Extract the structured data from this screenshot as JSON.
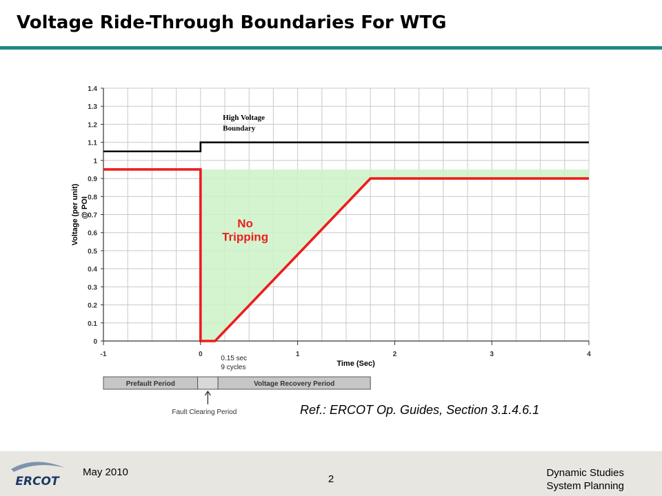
{
  "slide": {
    "title": "Voltage Ride-Through Boundaries For WTG",
    "reference": "Ref.: ERCOT Op. Guides, Section 3.1.4.6.1"
  },
  "footer": {
    "logo_text": "ERCOT",
    "date": "May 2010",
    "page_number": "2",
    "department_line1": "Dynamic Studies",
    "department_line2": "System Planning"
  },
  "colors": {
    "teal_rule": "#1f8a82",
    "red_boundary": "#ee1c1c",
    "black_boundary": "#000000",
    "no_trip_fill": "#ccf2c8",
    "period_bar": "#c6c6c6"
  },
  "chart_data": {
    "type": "line",
    "xlabel": "Time (Sec)",
    "ylabel_line1": "Voltage (per unit)",
    "ylabel_line2": "@ POI",
    "xlim": [
      -1,
      4
    ],
    "ylim": [
      0,
      1.4
    ],
    "x_ticks": [
      "-1",
      "0",
      "1",
      "2",
      "3",
      "4"
    ],
    "y_ticks": [
      "0",
      "0.1",
      "0.2",
      "0.3",
      "0.4",
      "0.5",
      "0.6",
      "0.7",
      "0.8",
      "0.9",
      "1",
      "1.1",
      "1.2",
      "1.3",
      "1.4"
    ],
    "grid": true,
    "series": [
      {
        "name": "High Voltage Boundary",
        "color": "#000000",
        "points": [
          [
            -1,
            1.05
          ],
          [
            0,
            1.05
          ],
          [
            0,
            1.1
          ],
          [
            4,
            1.1
          ]
        ]
      },
      {
        "name": "",
        "color": "#ee1c1c",
        "points": [
          [
            -1,
            0.95
          ],
          [
            0,
            0.95
          ],
          [
            0,
            0
          ],
          [
            0.15,
            0
          ],
          [
            1.75,
            0.9
          ],
          [
            4,
            0.9
          ]
        ]
      }
    ],
    "no_trip_region": {
      "label_line1": "No",
      "label_line2": "Tripping",
      "points": [
        [
          0,
          0.95
        ],
        [
          4,
          0.95
        ],
        [
          4,
          0.9
        ],
        [
          1.75,
          0.9
        ],
        [
          0.15,
          0
        ],
        [
          0,
          0
        ]
      ]
    },
    "annotations": {
      "hv_label_line1": "High Voltage",
      "hv_label_line2": "Boundary",
      "fault_clear_line1": "0.15 sec",
      "fault_clear_line2": "9 cycles"
    },
    "periods": {
      "prefault": {
        "label": "Prefault Period",
        "start": -1,
        "end": -0.03
      },
      "fault_clearing": {
        "label": "Fault Clearing Period",
        "start": -0.03,
        "end": 0.18
      },
      "recovery": {
        "label": "Voltage Recovery Period",
        "start": 0.18,
        "end": 1.75
      }
    }
  }
}
